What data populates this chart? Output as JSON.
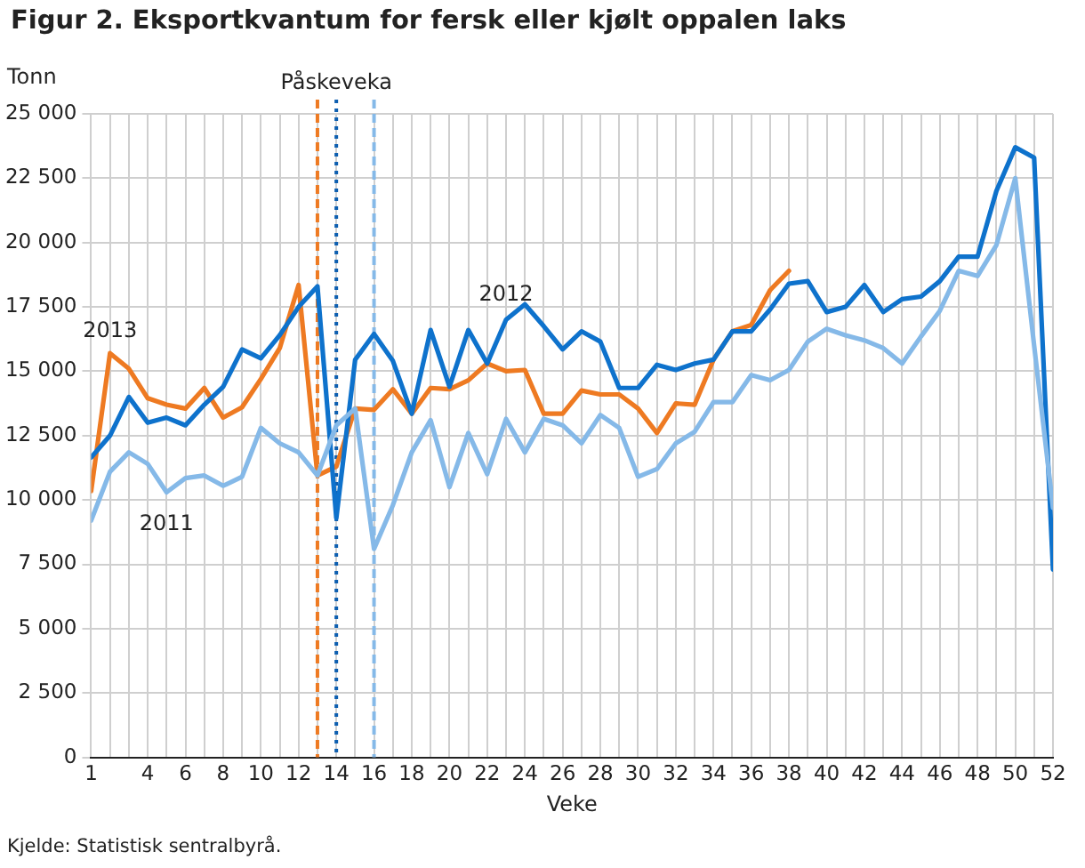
{
  "chart_data": {
    "type": "line",
    "title": "Figur 2. Eksportkvantum for fersk eller kjølt oppalen laks",
    "ylabel": "Tonn",
    "xlabel": "Veke",
    "x": [
      1,
      2,
      3,
      4,
      5,
      6,
      7,
      8,
      9,
      10,
      11,
      12,
      13,
      14,
      15,
      16,
      17,
      18,
      19,
      20,
      21,
      22,
      23,
      24,
      25,
      26,
      27,
      28,
      29,
      30,
      31,
      32,
      33,
      34,
      35,
      36,
      37,
      38,
      39,
      40,
      41,
      42,
      43,
      44,
      45,
      46,
      47,
      48,
      49,
      50,
      51,
      52
    ],
    "series": [
      {
        "name": "2011",
        "color": "#85b9e8",
        "values": [
          9200,
          11100,
          11850,
          11400,
          10300,
          10850,
          10950,
          10550,
          10900,
          12800,
          12200,
          11850,
          10950,
          12900,
          13550,
          8100,
          9800,
          11850,
          13100,
          10500,
          12600,
          11000,
          13150,
          11850,
          13150,
          12900,
          12200,
          13300,
          12800,
          10900,
          11200,
          12200,
          12650,
          13800,
          13800,
          14850,
          14650,
          15050,
          16150,
          16650,
          16400,
          16200,
          15900,
          15300,
          16350,
          17350,
          18900,
          18700,
          19900,
          22500,
          16000,
          9700
        ]
      },
      {
        "name": "2012",
        "color": "#0e72cc",
        "values": [
          11650,
          12500,
          14000,
          13000,
          13200,
          12900,
          13700,
          14400,
          15850,
          15500,
          16400,
          17500,
          18300,
          9300,
          15450,
          16450,
          15400,
          13350,
          16600,
          14400,
          16600,
          15300,
          17000,
          17600,
          16750,
          15850,
          16550,
          16150,
          14350,
          14350,
          15250,
          15050,
          15300,
          15450,
          16550,
          16550,
          17400,
          18400,
          18500,
          17300,
          17500,
          18350,
          17300,
          17800,
          17900,
          18500,
          19450,
          19450,
          22000,
          23700,
          23300,
          7300
        ]
      },
      {
        "name": "2013",
        "color": "#ee7a22",
        "values": [
          10350,
          15700,
          15100,
          13950,
          13700,
          13550,
          14350,
          13200,
          13600,
          14700,
          15900,
          18350,
          10950,
          11300,
          13550,
          13500,
          14300,
          13350,
          14350,
          14300,
          14650,
          15300,
          15000,
          15050,
          13350,
          13350,
          14250,
          14100,
          14100,
          13550,
          12600,
          13750,
          13700,
          15450,
          16550,
          16800,
          18150,
          18900,
          null,
          null,
          null,
          null,
          null,
          null,
          null,
          null,
          null,
          null,
          null,
          null,
          null,
          null
        ]
      }
    ],
    "xlim": [
      1,
      52
    ],
    "xticks": [
      1,
      {
        "value": 2,
        "label": null
      },
      {
        "value": 3,
        "label": null
      },
      4,
      {
        "value": 5,
        "label": null
      },
      6,
      {
        "value": 7,
        "label": null
      },
      8,
      {
        "value": 9,
        "label": null
      },
      10,
      {
        "value": 11,
        "label": null
      },
      12,
      {
        "value": 13,
        "label": null
      },
      14,
      {
        "value": 15,
        "label": null
      },
      16,
      {
        "value": 17,
        "label": null
      },
      18,
      {
        "value": 19,
        "label": null
      },
      20,
      {
        "value": 21,
        "label": null
      },
      22,
      {
        "value": 23,
        "label": null
      },
      24,
      {
        "value": 25,
        "label": null
      },
      26,
      {
        "value": 27,
        "label": null
      },
      28,
      {
        "value": 29,
        "label": null
      },
      30,
      {
        "value": 31,
        "label": null
      },
      32,
      {
        "value": 33,
        "label": null
      },
      34,
      {
        "value": 35,
        "label": null
      },
      36,
      {
        "value": 37,
        "label": null
      },
      38,
      {
        "value": 39,
        "label": null
      },
      40,
      {
        "value": 41,
        "label": null
      },
      42,
      {
        "value": 43,
        "label": null
      },
      44,
      {
        "value": 45,
        "label": null
      },
      46,
      {
        "value": 47,
        "label": null
      },
      48,
      {
        "value": 49,
        "label": null
      },
      50,
      {
        "value": 51,
        "label": null
      },
      52
    ],
    "ylim": [
      0,
      25000
    ],
    "yticks": [
      0,
      {
        "value": 2500,
        "label": "2 500"
      },
      {
        "value": 5000,
        "label": "5 000"
      },
      {
        "value": 7500,
        "label": "7 500"
      },
      {
        "value": 10000,
        "label": "10 000"
      },
      {
        "value": 12500,
        "label": "12 500"
      },
      {
        "value": 15000,
        "label": "15 000"
      },
      {
        "value": 17500,
        "label": "17 500"
      },
      {
        "value": 20000,
        "label": "20 000"
      },
      {
        "value": 22500,
        "label": "22 500"
      },
      {
        "value": 25000,
        "label": "25 000"
      }
    ],
    "ref_lines": [
      {
        "axis": "x",
        "value": 13,
        "color": "#ee7a22",
        "line_style": "dashed"
      },
      {
        "axis": "x",
        "value": 14,
        "color": "#0e5fb0",
        "line_style": "dotted"
      },
      {
        "axis": "x",
        "value": 16,
        "color": "#85b9e8",
        "line_style": "dashed"
      }
    ],
    "annotations": [
      {
        "text": "Påskeveka",
        "x": 14,
        "y": 25000
      },
      "Kjelde: Statistisk sentralbyrå."
    ],
    "grid": true,
    "legend": false,
    "marker": "none",
    "line_style": "solid"
  }
}
